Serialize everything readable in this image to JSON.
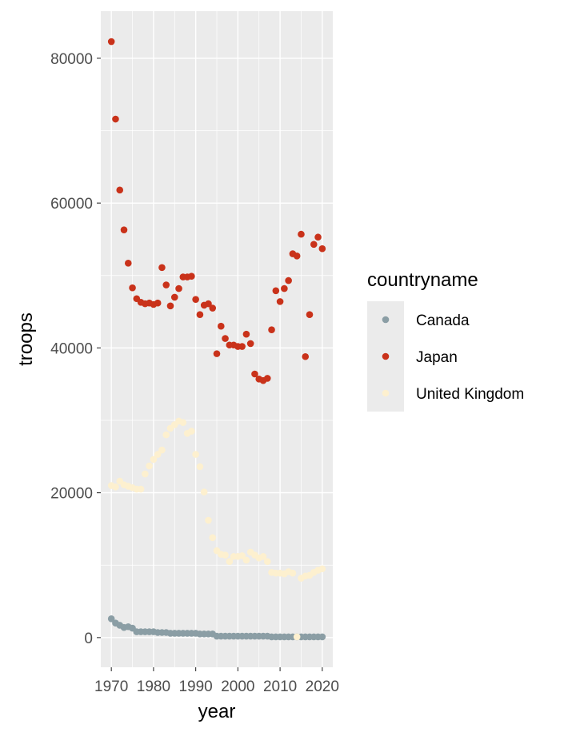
{
  "chart_data": {
    "type": "scatter",
    "title": "",
    "xlabel": "year",
    "ylabel": "troops",
    "xlim": [
      1967.5,
      2022.5
    ],
    "ylim": [
      -4100,
      86500
    ],
    "x_ticks": [
      1970,
      1980,
      1990,
      2000,
      2010,
      2020
    ],
    "x_tick_labels": [
      "1970",
      "1980",
      "1990",
      "2000",
      "2010",
      "2020"
    ],
    "y_ticks": [
      0,
      20000,
      40000,
      60000,
      80000
    ],
    "y_tick_labels": [
      "0",
      "20000",
      "40000",
      "60000",
      "80000"
    ],
    "grid": true,
    "legend": {
      "title": "countryname",
      "position": "right"
    },
    "series": [
      {
        "name": "Canada",
        "color": "#8b9ea5",
        "points": [
          [
            1970,
            2600
          ],
          [
            1971,
            2000
          ],
          [
            1972,
            1700
          ],
          [
            1973,
            1400
          ],
          [
            1974,
            1500
          ],
          [
            1975,
            1300
          ],
          [
            1976,
            800
          ],
          [
            1977,
            800
          ],
          [
            1978,
            800
          ],
          [
            1979,
            800
          ],
          [
            1980,
            800
          ],
          [
            1981,
            700
          ],
          [
            1982,
            700
          ],
          [
            1983,
            700
          ],
          [
            1984,
            600
          ],
          [
            1985,
            600
          ],
          [
            1986,
            600
          ],
          [
            1987,
            600
          ],
          [
            1988,
            600
          ],
          [
            1989,
            600
          ],
          [
            1990,
            600
          ],
          [
            1991,
            500
          ],
          [
            1992,
            500
          ],
          [
            1993,
            500
          ],
          [
            1994,
            500
          ],
          [
            1995,
            200
          ],
          [
            1996,
            200
          ],
          [
            1997,
            200
          ],
          [
            1998,
            200
          ],
          [
            1999,
            200
          ],
          [
            2000,
            200
          ],
          [
            2001,
            200
          ],
          [
            2002,
            200
          ],
          [
            2003,
            200
          ],
          [
            2004,
            200
          ],
          [
            2005,
            200
          ],
          [
            2006,
            200
          ],
          [
            2007,
            200
          ],
          [
            2008,
            100
          ],
          [
            2009,
            100
          ],
          [
            2010,
            100
          ],
          [
            2011,
            100
          ],
          [
            2012,
            100
          ],
          [
            2013,
            100
          ],
          [
            2014,
            100
          ],
          [
            2015,
            100
          ],
          [
            2016,
            100
          ],
          [
            2017,
            100
          ],
          [
            2018,
            100
          ],
          [
            2019,
            100
          ],
          [
            2020,
            100
          ]
        ]
      },
      {
        "name": "Japan",
        "color": "#c9321a",
        "points": [
          [
            1970,
            82300
          ],
          [
            1971,
            71600
          ],
          [
            1972,
            61800
          ],
          [
            1973,
            56300
          ],
          [
            1974,
            51700
          ],
          [
            1975,
            48300
          ],
          [
            1976,
            46800
          ],
          [
            1977,
            46300
          ],
          [
            1978,
            46100
          ],
          [
            1979,
            46200
          ],
          [
            1980,
            46000
          ],
          [
            1981,
            46200
          ],
          [
            1982,
            51100
          ],
          [
            1983,
            48700
          ],
          [
            1984,
            45800
          ],
          [
            1985,
            47000
          ],
          [
            1986,
            48200
          ],
          [
            1987,
            49800
          ],
          [
            1988,
            49800
          ],
          [
            1989,
            49900
          ],
          [
            1990,
            46700
          ],
          [
            1991,
            44600
          ],
          [
            1992,
            45900
          ],
          [
            1993,
            46100
          ],
          [
            1994,
            45500
          ],
          [
            1995,
            39200
          ],
          [
            1996,
            43000
          ],
          [
            1997,
            41300
          ],
          [
            1998,
            40400
          ],
          [
            1999,
            40400
          ],
          [
            2000,
            40200
          ],
          [
            2001,
            40200
          ],
          [
            2002,
            41900
          ],
          [
            2003,
            40600
          ],
          [
            2004,
            36400
          ],
          [
            2005,
            35700
          ],
          [
            2006,
            35500
          ],
          [
            2007,
            35800
          ],
          [
            2008,
            42500
          ],
          [
            2009,
            47900
          ],
          [
            2010,
            46400
          ],
          [
            2011,
            48200
          ],
          [
            2012,
            49300
          ],
          [
            2013,
            53000
          ],
          [
            2014,
            52700
          ],
          [
            2015,
            55700
          ],
          [
            2016,
            38800
          ],
          [
            2017,
            44600
          ],
          [
            2018,
            54300
          ],
          [
            2019,
            55300
          ],
          [
            2020,
            53700
          ]
        ]
      },
      {
        "name": "United Kingdom",
        "color": "#fdf0cf",
        "points": [
          [
            1970,
            21000
          ],
          [
            1971,
            20800
          ],
          [
            1972,
            21600
          ],
          [
            1973,
            21100
          ],
          [
            1974,
            20900
          ],
          [
            1975,
            20700
          ],
          [
            1976,
            20500
          ],
          [
            1977,
            20500
          ],
          [
            1978,
            22600
          ],
          [
            1979,
            23700
          ],
          [
            1980,
            24600
          ],
          [
            1981,
            25300
          ],
          [
            1982,
            25900
          ],
          [
            1983,
            28000
          ],
          [
            1984,
            28900
          ],
          [
            1985,
            29400
          ],
          [
            1986,
            29900
          ],
          [
            1987,
            29700
          ],
          [
            1988,
            28200
          ],
          [
            1989,
            28500
          ],
          [
            1990,
            25300
          ],
          [
            1991,
            23600
          ],
          [
            1992,
            20100
          ],
          [
            1993,
            16200
          ],
          [
            1994,
            13800
          ],
          [
            1995,
            12000
          ],
          [
            1996,
            11500
          ],
          [
            1997,
            11400
          ],
          [
            1998,
            10500
          ],
          [
            1999,
            11200
          ],
          [
            2000,
            11200
          ],
          [
            2001,
            11300
          ],
          [
            2002,
            10700
          ],
          [
            2003,
            11800
          ],
          [
            2004,
            11400
          ],
          [
            2005,
            11000
          ],
          [
            2006,
            11200
          ],
          [
            2007,
            10500
          ],
          [
            2008,
            9000
          ],
          [
            2009,
            8900
          ],
          [
            2010,
            8900
          ],
          [
            2011,
            8800
          ],
          [
            2012,
            9100
          ],
          [
            2013,
            8900
          ],
          [
            2014,
            100
          ],
          [
            2015,
            8200
          ],
          [
            2016,
            8500
          ],
          [
            2017,
            8600
          ],
          [
            2018,
            9000
          ],
          [
            2019,
            9300
          ],
          [
            2020,
            9500
          ]
        ]
      }
    ]
  }
}
